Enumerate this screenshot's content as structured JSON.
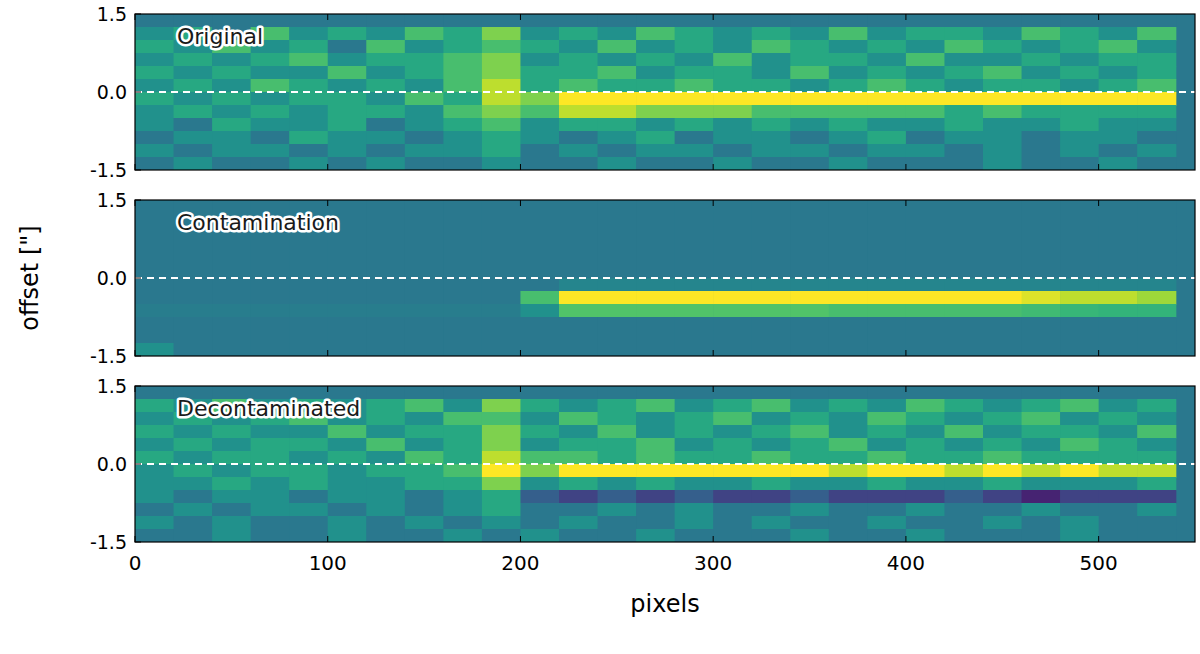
{
  "chart_data": [
    {
      "type": "heatmap",
      "title": "Original",
      "x_edges": [
        0,
        20,
        40,
        60,
        80,
        100,
        120,
        140,
        160,
        180,
        200,
        220,
        240,
        260,
        280,
        300,
        320,
        340,
        360,
        380,
        400,
        420,
        440,
        460,
        480,
        500,
        520,
        540
      ],
      "y_edges": [
        1.5,
        1.25,
        1.0,
        0.75,
        0.5,
        0.25,
        0.0,
        -0.25,
        -0.5,
        -0.75,
        -1.0,
        -1.25,
        -1.5
      ],
      "cells": [
        [
          0.4,
          0.4,
          0.4,
          0.4,
          0.4,
          0.4,
          0.4,
          0.4,
          0.4,
          0.4,
          0.4,
          0.4,
          0.4,
          0.4,
          0.4,
          0.4,
          0.4,
          0.4,
          0.4,
          0.4,
          0.4,
          0.4,
          0.4,
          0.4,
          0.4,
          0.4,
          0.4
        ],
        [
          0.5,
          0.6,
          0.4,
          0.7,
          0.5,
          0.6,
          0.5,
          0.7,
          0.6,
          0.8,
          0.5,
          0.6,
          0.5,
          0.7,
          0.6,
          0.5,
          0.6,
          0.5,
          0.7,
          0.5,
          0.6,
          0.6,
          0.5,
          0.7,
          0.6,
          0.5,
          0.7
        ],
        [
          0.6,
          0.5,
          0.7,
          0.5,
          0.6,
          0.4,
          0.7,
          0.5,
          0.6,
          0.7,
          0.6,
          0.5,
          0.7,
          0.5,
          0.6,
          0.5,
          0.7,
          0.6,
          0.5,
          0.6,
          0.5,
          0.7,
          0.6,
          0.5,
          0.6,
          0.7,
          0.5
        ],
        [
          0.5,
          0.6,
          0.5,
          0.6,
          0.7,
          0.5,
          0.6,
          0.6,
          0.7,
          0.8,
          0.5,
          0.6,
          0.5,
          0.6,
          0.5,
          0.7,
          0.5,
          0.6,
          0.6,
          0.5,
          0.7,
          0.5,
          0.5,
          0.6,
          0.5,
          0.6,
          0.6
        ],
        [
          0.6,
          0.5,
          0.6,
          0.5,
          0.5,
          0.7,
          0.5,
          0.6,
          0.7,
          0.8,
          0.6,
          0.6,
          0.7,
          0.5,
          0.6,
          0.6,
          0.5,
          0.7,
          0.5,
          0.6,
          0.5,
          0.6,
          0.7,
          0.5,
          0.6,
          0.5,
          0.6
        ],
        [
          0.5,
          0.6,
          0.5,
          0.7,
          0.6,
          0.5,
          0.6,
          0.5,
          0.7,
          0.9,
          0.6,
          0.7,
          0.6,
          0.6,
          0.7,
          0.6,
          0.6,
          0.5,
          0.6,
          0.7,
          0.6,
          0.5,
          0.6,
          0.6,
          0.5,
          0.6,
          0.7
        ],
        [
          0.6,
          0.5,
          0.6,
          0.5,
          0.6,
          0.6,
          0.5,
          0.7,
          0.6,
          0.9,
          0.8,
          1.0,
          1.0,
          1.0,
          1.0,
          1.0,
          1.0,
          1.0,
          1.0,
          1.0,
          1.0,
          1.0,
          1.0,
          1.0,
          1.0,
          1.0,
          1.0
        ],
        [
          0.5,
          0.6,
          0.5,
          0.6,
          0.5,
          0.6,
          0.6,
          0.5,
          0.7,
          0.8,
          0.7,
          0.9,
          0.9,
          0.8,
          0.8,
          0.8,
          0.7,
          0.7,
          0.7,
          0.7,
          0.7,
          0.6,
          0.7,
          0.6,
          0.6,
          0.6,
          0.6
        ],
        [
          0.5,
          0.4,
          0.6,
          0.5,
          0.5,
          0.6,
          0.4,
          0.5,
          0.6,
          0.7,
          0.5,
          0.6,
          0.6,
          0.5,
          0.6,
          0.5,
          0.6,
          0.5,
          0.6,
          0.5,
          0.5,
          0.6,
          0.5,
          0.5,
          0.6,
          0.5,
          0.5
        ],
        [
          0.4,
          0.5,
          0.5,
          0.4,
          0.6,
          0.5,
          0.5,
          0.4,
          0.5,
          0.6,
          0.5,
          0.4,
          0.5,
          0.6,
          0.4,
          0.5,
          0.5,
          0.4,
          0.5,
          0.6,
          0.4,
          0.5,
          0.5,
          0.4,
          0.5,
          0.5,
          0.4
        ],
        [
          0.5,
          0.4,
          0.5,
          0.5,
          0.4,
          0.5,
          0.4,
          0.5,
          0.5,
          0.6,
          0.4,
          0.5,
          0.4,
          0.5,
          0.5,
          0.4,
          0.5,
          0.5,
          0.4,
          0.5,
          0.5,
          0.4,
          0.5,
          0.4,
          0.5,
          0.4,
          0.5
        ],
        [
          0.4,
          0.5,
          0.4,
          0.4,
          0.5,
          0.4,
          0.5,
          0.4,
          0.4,
          0.5,
          0.4,
          0.4,
          0.5,
          0.4,
          0.4,
          0.5,
          0.4,
          0.4,
          0.5,
          0.4,
          0.4,
          0.4,
          0.5,
          0.4,
          0.4,
          0.5,
          0.4
        ]
      ],
      "color_range": [
        0,
        1
      ],
      "hline": 0.0,
      "xlim": [
        0,
        550
      ],
      "ylim": [
        -1.5,
        1.5
      ],
      "xticks": [
        0,
        100,
        200,
        300,
        400,
        500
      ],
      "yticks": [
        -1.5,
        {
          "value": 0.0,
          "label": "0.0"
        },
        1.5
      ],
      "tick_labels": "y"
    },
    {
      "type": "heatmap",
      "title": "Contamination",
      "ylabel": "offset [\"]",
      "x_edges": [
        0,
        20,
        40,
        60,
        80,
        100,
        120,
        140,
        160,
        180,
        200,
        220,
        240,
        260,
        280,
        300,
        320,
        340,
        360,
        380,
        400,
        420,
        440,
        460,
        480,
        500,
        520,
        540
      ],
      "y_edges": [
        1.5,
        1.25,
        1.0,
        0.75,
        0.5,
        0.25,
        0.0,
        -0.25,
        -0.5,
        -0.75,
        -1.0,
        -1.25,
        -1.5
      ],
      "cells": [
        [
          0.4,
          0.4,
          0.4,
          0.4,
          0.4,
          0.4,
          0.4,
          0.4,
          0.4,
          0.4,
          0.4,
          0.4,
          0.4,
          0.4,
          0.4,
          0.4,
          0.4,
          0.4,
          0.4,
          0.4,
          0.4,
          0.4,
          0.4,
          0.4,
          0.4,
          0.4,
          0.4
        ],
        [
          0.4,
          0.4,
          0.4,
          0.4,
          0.4,
          0.4,
          0.4,
          0.4,
          0.4,
          0.4,
          0.4,
          0.4,
          0.4,
          0.4,
          0.4,
          0.4,
          0.4,
          0.4,
          0.4,
          0.4,
          0.4,
          0.4,
          0.4,
          0.4,
          0.4,
          0.4,
          0.4
        ],
        [
          0.4,
          0.4,
          0.4,
          0.4,
          0.4,
          0.4,
          0.4,
          0.4,
          0.4,
          0.4,
          0.4,
          0.4,
          0.4,
          0.4,
          0.4,
          0.4,
          0.4,
          0.4,
          0.4,
          0.4,
          0.4,
          0.4,
          0.4,
          0.4,
          0.4,
          0.4,
          0.4
        ],
        [
          0.4,
          0.4,
          0.4,
          0.4,
          0.4,
          0.4,
          0.4,
          0.4,
          0.4,
          0.4,
          0.4,
          0.4,
          0.4,
          0.4,
          0.4,
          0.4,
          0.4,
          0.4,
          0.4,
          0.4,
          0.4,
          0.4,
          0.4,
          0.4,
          0.4,
          0.4,
          0.4
        ],
        [
          0.4,
          0.4,
          0.4,
          0.4,
          0.4,
          0.4,
          0.4,
          0.4,
          0.4,
          0.4,
          0.4,
          0.4,
          0.4,
          0.4,
          0.4,
          0.4,
          0.4,
          0.4,
          0.4,
          0.4,
          0.4,
          0.4,
          0.4,
          0.4,
          0.4,
          0.4,
          0.4
        ],
        [
          0.4,
          0.4,
          0.4,
          0.4,
          0.4,
          0.4,
          0.4,
          0.4,
          0.4,
          0.4,
          0.4,
          0.4,
          0.4,
          0.4,
          0.4,
          0.4,
          0.4,
          0.4,
          0.4,
          0.4,
          0.4,
          0.4,
          0.4,
          0.4,
          0.4,
          0.4,
          0.4
        ],
        [
          0.4,
          0.4,
          0.4,
          0.4,
          0.4,
          0.4,
          0.4,
          0.4,
          0.4,
          0.4,
          0.4,
          0.45,
          0.45,
          0.45,
          0.45,
          0.45,
          0.45,
          0.45,
          0.45,
          0.45,
          0.45,
          0.45,
          0.45,
          0.45,
          0.45,
          0.45,
          0.45
        ],
        [
          0.4,
          0.4,
          0.4,
          0.4,
          0.4,
          0.4,
          0.4,
          0.4,
          0.4,
          0.4,
          0.7,
          1.0,
          1.0,
          1.0,
          1.0,
          1.0,
          1.0,
          1.0,
          1.0,
          1.0,
          1.0,
          1.0,
          1.0,
          0.95,
          0.9,
          0.9,
          0.85
        ],
        [
          0.42,
          0.42,
          0.42,
          0.42,
          0.42,
          0.42,
          0.42,
          0.42,
          0.42,
          0.42,
          0.5,
          0.72,
          0.72,
          0.72,
          0.72,
          0.72,
          0.72,
          0.72,
          0.7,
          0.7,
          0.7,
          0.7,
          0.7,
          0.68,
          0.66,
          0.65,
          0.65
        ],
        [
          0.4,
          0.4,
          0.4,
          0.4,
          0.4,
          0.4,
          0.4,
          0.4,
          0.4,
          0.4,
          0.4,
          0.4,
          0.4,
          0.4,
          0.4,
          0.4,
          0.4,
          0.4,
          0.4,
          0.4,
          0.4,
          0.4,
          0.4,
          0.4,
          0.4,
          0.4,
          0.4
        ],
        [
          0.4,
          0.4,
          0.4,
          0.4,
          0.4,
          0.4,
          0.4,
          0.4,
          0.4,
          0.4,
          0.4,
          0.4,
          0.4,
          0.4,
          0.4,
          0.4,
          0.4,
          0.4,
          0.4,
          0.4,
          0.4,
          0.4,
          0.4,
          0.4,
          0.4,
          0.4,
          0.4
        ],
        [
          0.5,
          0.4,
          0.4,
          0.4,
          0.4,
          0.4,
          0.4,
          0.4,
          0.4,
          0.4,
          0.4,
          0.4,
          0.4,
          0.4,
          0.4,
          0.4,
          0.4,
          0.4,
          0.4,
          0.4,
          0.4,
          0.4,
          0.4,
          0.4,
          0.4,
          0.4,
          0.4
        ]
      ],
      "color_range": [
        0,
        1
      ],
      "hline": 0.0,
      "xlim": [
        0,
        550
      ],
      "ylim": [
        -1.5,
        1.5
      ],
      "xticks": [
        0,
        100,
        200,
        300,
        400,
        500
      ],
      "yticks": [
        -1.5,
        {
          "value": 0.0,
          "label": "0.0"
        },
        1.5
      ],
      "tick_labels": "y"
    },
    {
      "type": "heatmap",
      "title": "Decontaminated",
      "xlabel": "pixels",
      "x_edges": [
        0,
        20,
        40,
        60,
        80,
        100,
        120,
        140,
        160,
        180,
        200,
        220,
        240,
        260,
        280,
        300,
        320,
        340,
        360,
        380,
        400,
        420,
        440,
        460,
        480,
        500,
        520,
        540
      ],
      "y_edges": [
        1.5,
        1.25,
        1.0,
        0.75,
        0.5,
        0.25,
        0.0,
        -0.25,
        -0.5,
        -0.75,
        -1.0,
        -1.25,
        -1.5
      ],
      "cells": [
        [
          0.4,
          0.4,
          0.4,
          0.4,
          0.4,
          0.4,
          0.4,
          0.4,
          0.4,
          0.4,
          0.4,
          0.4,
          0.4,
          0.4,
          0.4,
          0.4,
          0.4,
          0.4,
          0.4,
          0.4,
          0.4,
          0.4,
          0.4,
          0.4,
          0.4,
          0.4,
          0.4
        ],
        [
          0.6,
          0.5,
          0.7,
          0.5,
          0.6,
          0.5,
          0.6,
          0.7,
          0.5,
          0.8,
          0.6,
          0.5,
          0.6,
          0.7,
          0.5,
          0.6,
          0.7,
          0.5,
          0.6,
          0.5,
          0.7,
          0.6,
          0.5,
          0.6,
          0.7,
          0.5,
          0.6
        ],
        [
          0.5,
          0.6,
          0.5,
          0.6,
          0.7,
          0.5,
          0.6,
          0.5,
          0.7,
          0.7,
          0.5,
          0.7,
          0.6,
          0.5,
          0.6,
          0.7,
          0.5,
          0.6,
          0.5,
          0.7,
          0.6,
          0.5,
          0.6,
          0.7,
          0.5,
          0.6,
          0.5
        ],
        [
          0.6,
          0.5,
          0.6,
          0.5,
          0.5,
          0.7,
          0.5,
          0.6,
          0.6,
          0.8,
          0.6,
          0.5,
          0.7,
          0.5,
          0.6,
          0.5,
          0.6,
          0.7,
          0.5,
          0.6,
          0.5,
          0.7,
          0.5,
          0.6,
          0.6,
          0.5,
          0.7
        ],
        [
          0.5,
          0.6,
          0.5,
          0.6,
          0.6,
          0.5,
          0.7,
          0.5,
          0.6,
          0.8,
          0.5,
          0.6,
          0.6,
          0.7,
          0.5,
          0.6,
          0.5,
          0.6,
          0.7,
          0.5,
          0.6,
          0.5,
          0.6,
          0.5,
          0.7,
          0.6,
          0.5
        ],
        [
          0.6,
          0.5,
          0.6,
          0.6,
          0.5,
          0.6,
          0.5,
          0.7,
          0.6,
          0.9,
          0.7,
          0.7,
          0.6,
          0.7,
          0.6,
          0.6,
          0.7,
          0.6,
          0.6,
          0.7,
          0.6,
          0.6,
          0.7,
          0.6,
          0.6,
          0.6,
          0.6
        ],
        [
          0.5,
          0.6,
          0.5,
          0.6,
          0.6,
          0.5,
          0.6,
          0.6,
          0.7,
          1.0,
          0.8,
          1.0,
          1.0,
          1.0,
          1.0,
          1.0,
          1.0,
          1.0,
          0.9,
          1.0,
          1.0,
          0.9,
          1.0,
          0.9,
          1.0,
          0.9,
          0.9
        ],
        [
          0.5,
          0.5,
          0.6,
          0.5,
          0.6,
          0.5,
          0.5,
          0.6,
          0.6,
          0.8,
          0.5,
          0.6,
          0.5,
          0.6,
          0.5,
          0.5,
          0.6,
          0.5,
          0.5,
          0.6,
          0.5,
          0.5,
          0.6,
          0.5,
          0.5,
          0.5,
          0.6
        ],
        [
          0.5,
          0.4,
          0.5,
          0.5,
          0.4,
          0.5,
          0.5,
          0.4,
          0.5,
          0.6,
          0.3,
          0.2,
          0.3,
          0.2,
          0.3,
          0.2,
          0.2,
          0.3,
          0.2,
          0.2,
          0.2,
          0.3,
          0.2,
          0.1,
          0.2,
          0.2,
          0.2
        ],
        [
          0.4,
          0.5,
          0.4,
          0.5,
          0.5,
          0.4,
          0.5,
          0.4,
          0.5,
          0.6,
          0.4,
          0.4,
          0.5,
          0.4,
          0.5,
          0.4,
          0.4,
          0.5,
          0.4,
          0.4,
          0.5,
          0.4,
          0.4,
          0.5,
          0.4,
          0.4,
          0.5
        ],
        [
          0.5,
          0.4,
          0.5,
          0.4,
          0.4,
          0.5,
          0.4,
          0.5,
          0.4,
          0.5,
          0.4,
          0.5,
          0.4,
          0.4,
          0.5,
          0.4,
          0.5,
          0.4,
          0.4,
          0.5,
          0.4,
          0.4,
          0.5,
          0.4,
          0.5,
          0.4,
          0.4
        ],
        [
          0.4,
          0.4,
          0.5,
          0.4,
          0.4,
          0.5,
          0.4,
          0.4,
          0.5,
          0.4,
          0.5,
          0.4,
          0.4,
          0.5,
          0.4,
          0.4,
          0.4,
          0.5,
          0.4,
          0.4,
          0.5,
          0.4,
          0.4,
          0.4,
          0.5,
          0.4,
          0.4
        ]
      ],
      "color_range": [
        0,
        1
      ],
      "hline": 0.0,
      "xlim": [
        0,
        550
      ],
      "ylim": [
        -1.5,
        1.5
      ],
      "xticks": [
        0,
        100,
        200,
        300,
        400,
        500
      ],
      "yticks": [
        -1.5,
        {
          "value": 0.0,
          "label": "0.0"
        },
        1.5
      ],
      "tick_labels": true
    }
  ]
}
